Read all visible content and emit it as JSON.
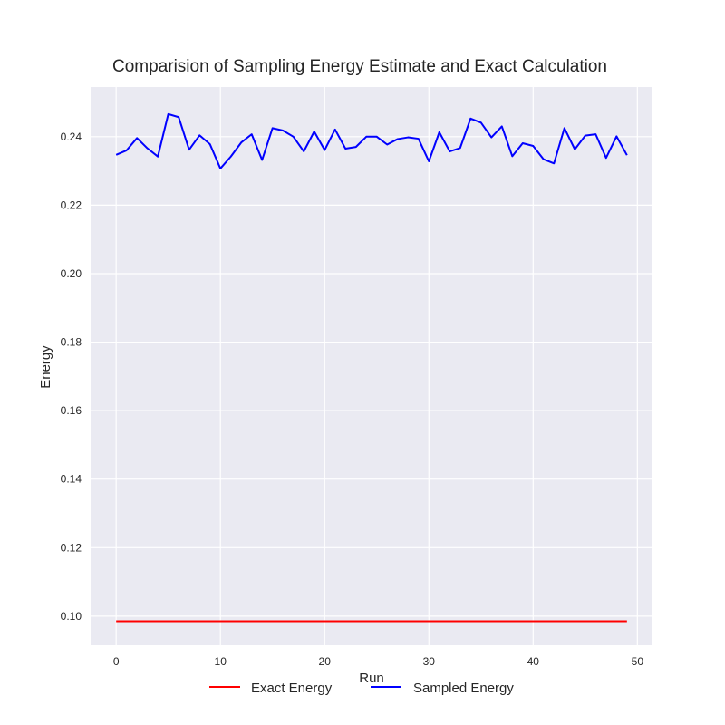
{
  "chart_data": {
    "type": "line",
    "title": "Comparision of Sampling Energy Estimate and Exact Calculation",
    "xlabel": "Run",
    "ylabel": "Energy",
    "xlim": [
      -2.45,
      51.45
    ],
    "ylim": [
      0.0915,
      0.2545
    ],
    "x_ticks": [
      0,
      10,
      20,
      30,
      40,
      50
    ],
    "y_ticks": [
      0.1,
      0.12,
      0.14,
      0.16,
      0.18,
      0.2,
      0.22,
      0.24
    ],
    "x_tick_labels": [
      "0",
      "10",
      "20",
      "30",
      "40",
      "50"
    ],
    "y_tick_labels": [
      "0.10",
      "0.12",
      "0.14",
      "0.16",
      "0.18",
      "0.20",
      "0.22",
      "0.24"
    ],
    "grid": true,
    "legend_position": "bottom-center",
    "x": [
      0,
      1,
      2,
      3,
      4,
      5,
      6,
      7,
      8,
      9,
      10,
      11,
      12,
      13,
      14,
      15,
      16,
      17,
      18,
      19,
      20,
      21,
      22,
      23,
      24,
      25,
      26,
      27,
      28,
      29,
      30,
      31,
      32,
      33,
      34,
      35,
      36,
      37,
      38,
      39,
      40,
      41,
      42,
      43,
      44,
      45,
      46,
      47,
      48,
      49
    ],
    "series": [
      {
        "name": "Exact Energy",
        "color": "#ff0000",
        "values": [
          0.0985,
          0.0985,
          0.0985,
          0.0985,
          0.0985,
          0.0985,
          0.0985,
          0.0985,
          0.0985,
          0.0985,
          0.0985,
          0.0985,
          0.0985,
          0.0985,
          0.0985,
          0.0985,
          0.0985,
          0.0985,
          0.0985,
          0.0985,
          0.0985,
          0.0985,
          0.0985,
          0.0985,
          0.0985,
          0.0985,
          0.0985,
          0.0985,
          0.0985,
          0.0985,
          0.0985,
          0.0985,
          0.0985,
          0.0985,
          0.0985,
          0.0985,
          0.0985,
          0.0985,
          0.0985,
          0.0985,
          0.0985,
          0.0985,
          0.0985,
          0.0985,
          0.0985,
          0.0985,
          0.0985,
          0.0985,
          0.0985,
          0.0985
        ]
      },
      {
        "name": "Sampled Energy",
        "color": "#0000ff",
        "values": [
          0.2347,
          0.236,
          0.2396,
          0.2366,
          0.2342,
          0.2466,
          0.2457,
          0.2362,
          0.2404,
          0.2378,
          0.2307,
          0.2342,
          0.2383,
          0.2407,
          0.2332,
          0.2425,
          0.2418,
          0.24,
          0.2357,
          0.2415,
          0.2361,
          0.2421,
          0.2365,
          0.237,
          0.24,
          0.24,
          0.2377,
          0.2393,
          0.2398,
          0.2394,
          0.2328,
          0.2413,
          0.2357,
          0.2367,
          0.2453,
          0.2441,
          0.2398,
          0.243,
          0.2343,
          0.2381,
          0.2373,
          0.2334,
          0.2322,
          0.2425,
          0.2363,
          0.2403,
          0.2407,
          0.2338,
          0.2401,
          0.2346
        ]
      }
    ]
  }
}
